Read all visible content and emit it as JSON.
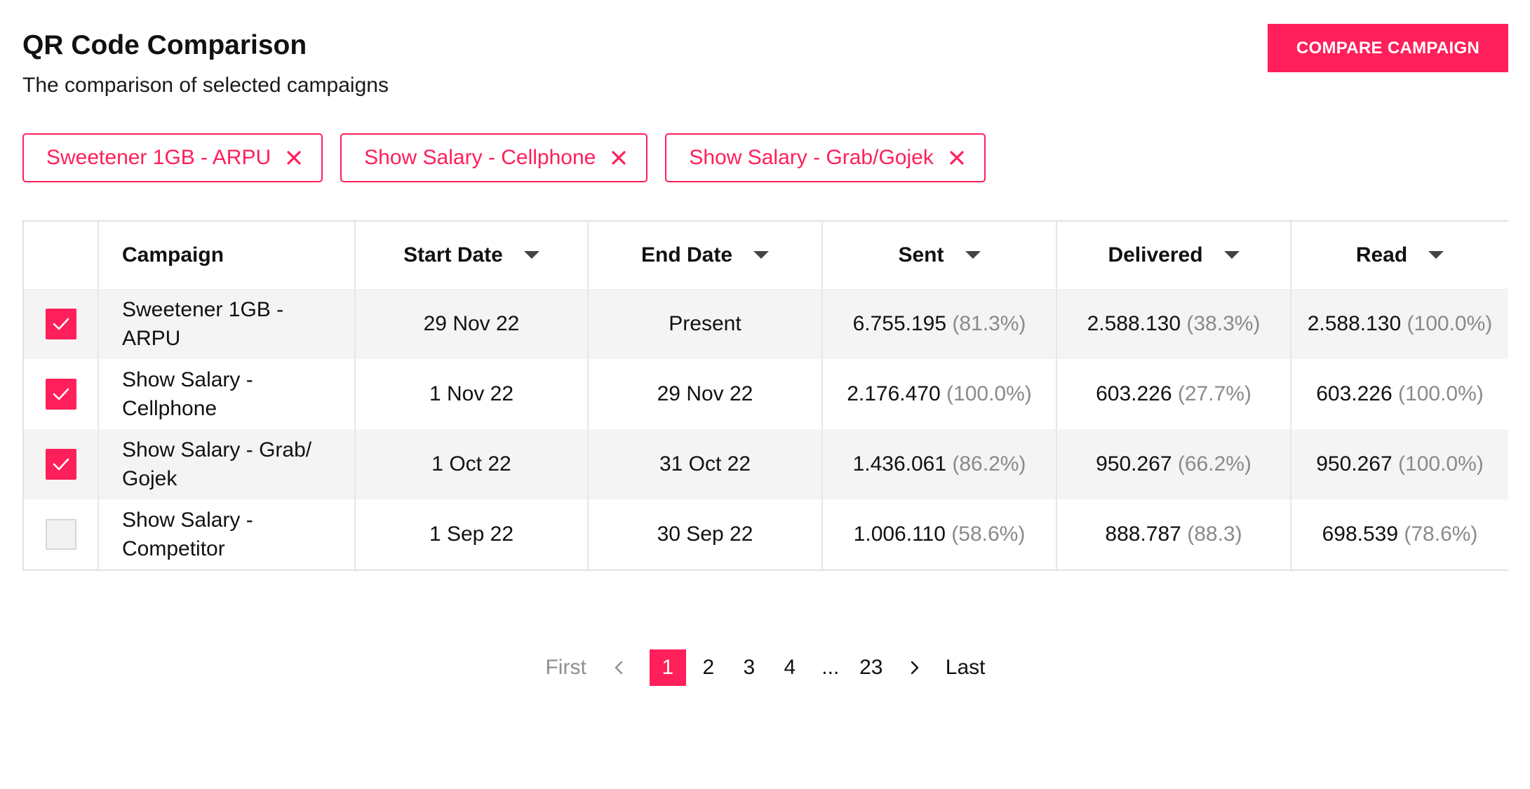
{
  "header": {
    "title": "QR Code Comparison",
    "subtitle": "The comparison of selected campaigns",
    "compare_button": "COMPARE CAMPAIGN"
  },
  "selected_chips": [
    {
      "label": "Sweetener 1GB - ARPU",
      "icon": "close-icon"
    },
    {
      "label": "Show Salary - Cellphone",
      "icon": "close-icon"
    },
    {
      "label": "Show Salary - Grab/Gojek",
      "icon": "close-icon"
    }
  ],
  "table": {
    "columns": [
      {
        "label": "",
        "sortable": false
      },
      {
        "label": "Campaign",
        "sortable": false
      },
      {
        "label": "Start Date",
        "sortable": true
      },
      {
        "label": "End Date",
        "sortable": true
      },
      {
        "label": "Sent",
        "sortable": true
      },
      {
        "label": "Delivered",
        "sortable": true
      },
      {
        "label": "Read",
        "sortable": true
      }
    ],
    "rows": [
      {
        "checked": true,
        "campaign_line1": "Sweetener 1GB -",
        "campaign_line2": "ARPU",
        "start_date": "29 Nov 22",
        "end_date": "Present",
        "sent": "6.755.195",
        "sent_pct": "(81.3%)",
        "delivered": "2.588.130",
        "delivered_pct": "(38.3%)",
        "read": "2.588.130",
        "read_pct": "(100.0%)"
      },
      {
        "checked": true,
        "campaign_line1": "Show Salary -",
        "campaign_line2": "Cellphone",
        "start_date": "1 Nov 22",
        "end_date": "29 Nov 22",
        "sent": "2.176.470",
        "sent_pct": "(100.0%)",
        "delivered": "603.226",
        "delivered_pct": "(27.7%)",
        "read": "603.226",
        "read_pct": "(100.0%)"
      },
      {
        "checked": true,
        "campaign_line1": "Show Salary - Grab/",
        "campaign_line2": "Gojek",
        "start_date": "1 Oct 22",
        "end_date": "31 Oct 22",
        "sent": "1.436.061",
        "sent_pct": "(86.2%)",
        "delivered": "950.267",
        "delivered_pct": "(66.2%)",
        "read": "950.267",
        "read_pct": "(100.0%)"
      },
      {
        "checked": false,
        "campaign_line1": "Show Salary -",
        "campaign_line2": "Competitor",
        "start_date": "1 Sep 22",
        "end_date": "30 Sep 22",
        "sent": "1.006.110",
        "sent_pct": "(58.6%)",
        "delivered": "888.787",
        "delivered_pct": "(88.3)",
        "read": "698.539",
        "read_pct": "(78.6%)"
      }
    ]
  },
  "pagination": {
    "first": "First",
    "prev_icon": "chevron-left-icon",
    "pages": [
      "1",
      "2",
      "3",
      "4"
    ],
    "ellipsis": "...",
    "last_page": "23",
    "next_icon": "chevron-right-icon",
    "last": "Last",
    "current": "1"
  },
  "colors": {
    "accent": "#ff1f5a",
    "row_stripe": "#f4f4f4",
    "muted_text": "#8a8a8a"
  }
}
